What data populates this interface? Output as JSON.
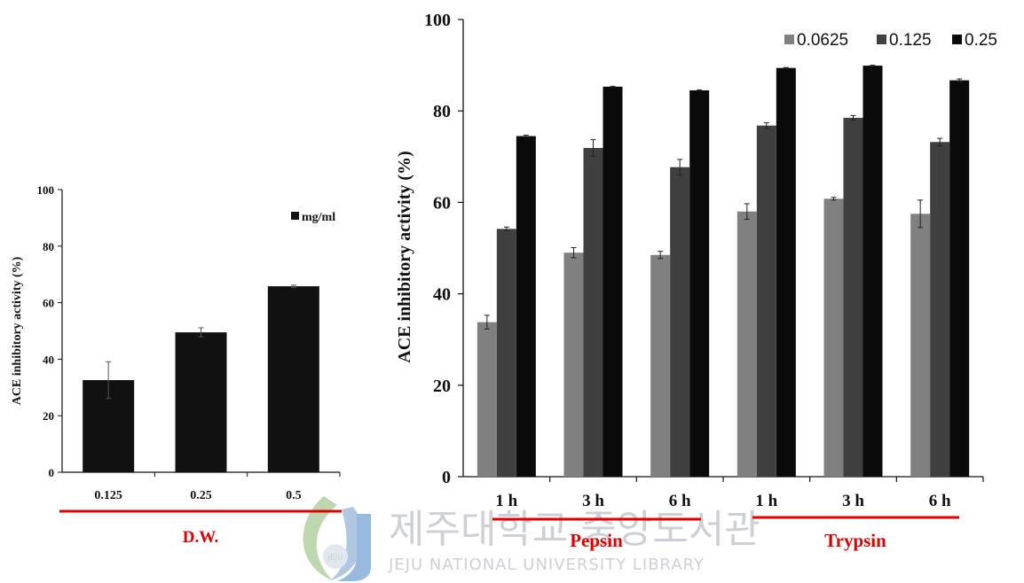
{
  "chart_data": [
    {
      "type": "bar",
      "categories": [
        "0.125",
        "0.25",
        "0.5"
      ],
      "series": [
        {
          "name": "mg/ml",
          "values": [
            32.6,
            49.5,
            65.8
          ],
          "errors": [
            6.5,
            1.6,
            0.4
          ],
          "color": "#111111"
        }
      ],
      "ylabel": "ACE inhibitory activity (%)",
      "yticks": [
        "0",
        "20",
        "40",
        "60",
        "80",
        "100"
      ],
      "ylim": [
        0,
        100
      ],
      "legend": "top-right",
      "grid": false,
      "group_labels": [
        "D.W."
      ]
    },
    {
      "type": "bar",
      "categories": [
        "1 h",
        "3 h",
        "6 h",
        "1 h",
        "3 h",
        "6 h"
      ],
      "series": [
        {
          "name": "0.0625",
          "values": [
            33.8,
            49.0,
            48.5,
            58.0,
            60.8,
            57.5
          ],
          "errors": [
            1.5,
            1.1,
            0.8,
            1.7,
            0.3,
            3.0
          ],
          "color": "#808080"
        },
        {
          "name": "0.125",
          "values": [
            54.2,
            71.9,
            67.7,
            76.8,
            78.5,
            73.2
          ],
          "errors": [
            0.4,
            1.8,
            1.7,
            0.6,
            0.5,
            0.8
          ],
          "color": "#404040"
        },
        {
          "name": "0.25",
          "values": [
            74.5,
            85.3,
            84.5,
            89.4,
            89.9,
            86.7
          ],
          "errors": [
            0.2,
            0.1,
            0.1,
            0.1,
            0.1,
            0.3
          ],
          "color": "#0a0a0a"
        }
      ],
      "ylabel": "ACE inhibitory activity (%)",
      "yticks": [
        "0",
        "20",
        "40",
        "60",
        "80",
        "100"
      ],
      "ylim": [
        0,
        100
      ],
      "legend": "top-right",
      "grid": false,
      "group_labels": [
        "Pepsin",
        "Trypsin"
      ]
    }
  ],
  "watermark": {
    "korean": "제주대학교 중앙도서관",
    "english": "JEJU NATIONAL UNIVERSITY LIBRARY",
    "emblem": "JEJU"
  },
  "colors": {
    "group_underline": "#e00000",
    "axis": "#111111"
  }
}
